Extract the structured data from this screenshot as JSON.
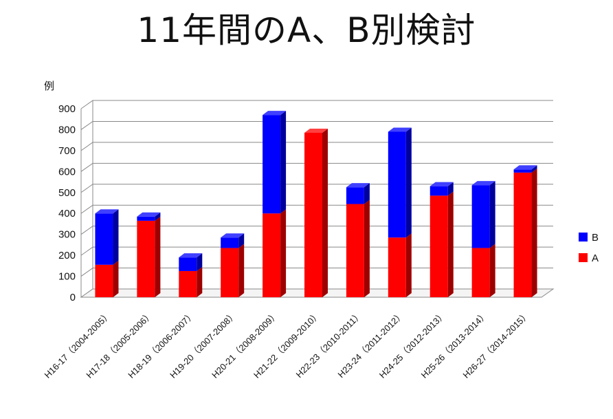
{
  "chart_data": {
    "type": "bar",
    "stacked": true,
    "title": "11年間のA、B別検討",
    "ylabel": "例",
    "xlabel": "",
    "ylim": [
      0,
      900
    ],
    "yticks": [
      "0",
      "100",
      "200",
      "300",
      "400",
      "500",
      "600",
      "700",
      "800",
      "900"
    ],
    "grid": true,
    "legend_position": "right",
    "categories": [
      "H16-17（2004-2005）",
      "H17-18（2005-2006）",
      "H18-19（2006-2007）",
      "H19-20（2007-2008）",
      "H20-21（2008-2009）",
      "H21-22（2009-2010）",
      "H22-23（2010-2011）",
      "H23-24（2011-2012）",
      "H24-25（2012-2013）",
      "H25-26（2013-2014）",
      "H26-27（2014-2015）"
    ],
    "series": [
      {
        "name": "A",
        "color": "#ff0000",
        "values": [
          155,
          365,
          125,
          235,
          400,
          785,
          445,
          285,
          485,
          235,
          595
        ]
      },
      {
        "name": "B",
        "color": "#0000ff",
        "values": [
          245,
          20,
          65,
          50,
          470,
          0,
          80,
          505,
          45,
          300,
          15
        ]
      }
    ]
  }
}
